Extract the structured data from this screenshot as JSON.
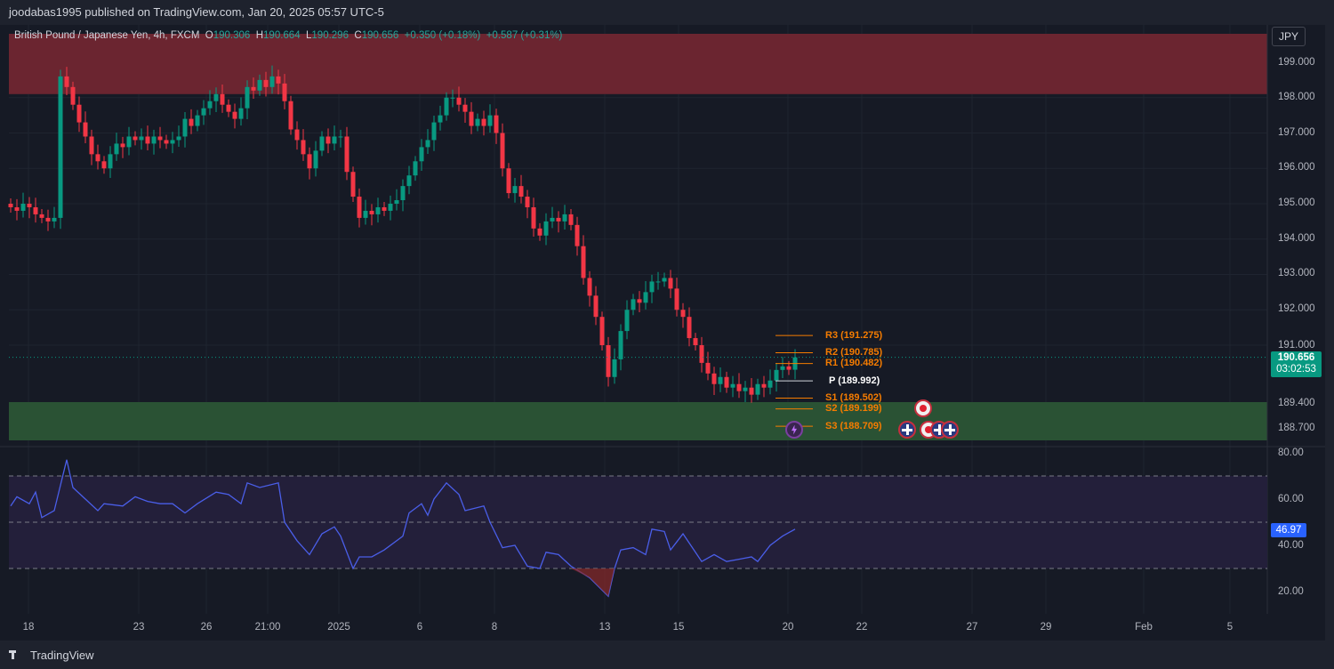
{
  "header": {
    "published": "joodabas1995 published on TradingView.com, Jan 20, 2025 05:57 UTC-5"
  },
  "legend": {
    "symbol": "British Pound / Japanese Yen, 4h, FXCM",
    "o_label": "O",
    "o": "190.306",
    "h_label": "H",
    "h": "190.664",
    "l_label": "L",
    "l": "190.296",
    "c_label": "C",
    "c": "190.656",
    "change": "+0.350 (+0.18%)",
    "change2": "+0.587 (+0.31%)"
  },
  "currency": "JPY",
  "price_axis": [
    "199.000",
    "198.000",
    "197.000",
    "196.000",
    "195.000",
    "194.000",
    "193.000",
    "192.000",
    "191.000",
    "189.400",
    "188.700"
  ],
  "last_price": {
    "price": "190.656",
    "countdown": "03:02:53"
  },
  "rsi_axis": [
    "80.00",
    "60.00",
    "40.00",
    "20.00"
  ],
  "rsi_last": "46.97",
  "x_axis": [
    "18",
    "23",
    "26",
    "21:00",
    "2025",
    "6",
    "8",
    "13",
    "15",
    "20",
    "22",
    "27",
    "29",
    "Feb",
    "5"
  ],
  "pivots": [
    {
      "label": "R3 (191.275)",
      "price": 191.275,
      "color": "#f57c00"
    },
    {
      "label": "R2 (190.785)",
      "price": 190.785,
      "color": "#f57c00"
    },
    {
      "label": "R1 (190.482)",
      "price": 190.482,
      "color": "#f57c00"
    },
    {
      "label": "P (189.992)",
      "price": 189.992,
      "color": "#ffffff"
    },
    {
      "label": "S1 (189.502)",
      "price": 189.502,
      "color": "#f57c00"
    },
    {
      "label": "S2 (189.199)",
      "price": 189.199,
      "color": "#f57c00"
    },
    {
      "label": "S3 (188.709)",
      "price": 188.709,
      "color": "#f57c00"
    }
  ],
  "zones": {
    "resistance": [
      198.1,
      199.8
    ],
    "support": [
      188.4,
      189.5
    ]
  },
  "colors": {
    "up": "#089981",
    "down": "#f23645",
    "rsi": "#4a5ee8"
  },
  "footer": {
    "brand": "TradingView"
  },
  "chart_data": {
    "type": "candlestick",
    "closes": [
      194.9,
      194.8,
      195.0,
      194.9,
      194.7,
      194.6,
      194.5,
      194.6,
      198.6,
      198.3,
      197.8,
      197.3,
      196.9,
      196.4,
      196.2,
      196.0,
      196.4,
      196.7,
      196.6,
      196.9,
      196.8,
      196.9,
      196.7,
      196.9,
      196.8,
      196.7,
      196.8,
      196.9,
      197.4,
      197.2,
      197.5,
      197.7,
      197.9,
      198.1,
      197.8,
      197.6,
      197.4,
      197.7,
      198.3,
      198.2,
      198.5,
      198.3,
      198.6,
      198.4,
      197.9,
      197.1,
      196.8,
      196.4,
      196.0,
      196.5,
      196.9,
      196.7,
      196.9,
      196.9,
      195.9,
      195.2,
      194.6,
      194.8,
      194.7,
      194.9,
      194.8,
      195.0,
      195.1,
      195.5,
      195.8,
      196.2,
      196.6,
      196.8,
      197.3,
      197.5,
      198.0,
      198.0,
      197.8,
      197.6,
      197.2,
      197.4,
      197.2,
      197.5,
      197.0,
      196.0,
      195.3,
      195.5,
      195.2,
      194.9,
      194.3,
      194.1,
      194.5,
      194.6,
      194.5,
      194.7,
      194.4,
      193.8,
      192.9,
      192.4,
      191.8,
      191.0,
      190.1,
      190.6,
      191.4,
      192.0,
      192.3,
      192.2,
      192.5,
      192.8,
      192.8,
      192.9,
      192.6,
      192.0,
      191.8,
      191.2,
      191.0,
      190.5,
      190.2,
      189.9,
      190.1,
      189.8,
      189.9,
      189.7,
      189.8,
      189.6,
      189.9,
      189.8,
      190.0,
      190.3,
      190.4,
      190.306,
      190.656
    ],
    "rsi": [
      [
        0,
        57
      ],
      [
        1,
        61
      ],
      [
        3,
        58
      ],
      [
        4,
        63
      ],
      [
        5,
        52
      ],
      [
        7,
        55
      ],
      [
        9,
        77
      ],
      [
        10,
        65
      ],
      [
        12,
        60
      ],
      [
        14,
        55
      ],
      [
        15,
        58
      ],
      [
        18,
        57
      ],
      [
        20,
        61
      ],
      [
        22,
        59
      ],
      [
        24,
        58
      ],
      [
        26,
        58
      ],
      [
        28,
        54
      ],
      [
        30,
        58
      ],
      [
        33,
        63
      ],
      [
        35,
        62
      ],
      [
        37,
        58
      ],
      [
        38,
        67
      ],
      [
        40,
        65
      ],
      [
        43,
        67
      ],
      [
        44,
        50
      ],
      [
        46,
        42
      ],
      [
        48,
        36
      ],
      [
        50,
        45
      ],
      [
        52,
        48
      ],
      [
        53,
        44
      ],
      [
        55,
        30
      ],
      [
        56,
        35
      ],
      [
        58,
        35
      ],
      [
        60,
        38
      ],
      [
        63,
        44
      ],
      [
        64,
        54
      ],
      [
        66,
        58
      ],
      [
        67,
        53
      ],
      [
        68,
        60
      ],
      [
        70,
        67
      ],
      [
        72,
        62
      ],
      [
        73,
        55
      ],
      [
        76,
        57
      ],
      [
        77,
        50
      ],
      [
        79,
        39
      ],
      [
        81,
        40
      ],
      [
        83,
        31
      ],
      [
        85,
        30
      ],
      [
        86,
        37
      ],
      [
        88,
        36
      ],
      [
        90,
        31
      ],
      [
        93,
        26
      ],
      [
        96,
        18
      ],
      [
        97,
        30
      ],
      [
        98,
        38
      ],
      [
        100,
        39
      ],
      [
        102,
        36
      ],
      [
        103,
        47
      ],
      [
        105,
        46
      ],
      [
        106,
        38
      ],
      [
        108,
        45
      ],
      [
        110,
        37
      ],
      [
        111,
        33
      ],
      [
        113,
        36
      ],
      [
        115,
        33
      ],
      [
        117,
        34
      ],
      [
        119,
        35
      ],
      [
        120,
        33
      ],
      [
        122,
        40
      ],
      [
        124,
        44
      ],
      [
        126,
        47
      ]
    ],
    "rsi_levels": [
      70,
      50,
      30
    ],
    "price_range": [
      187.6,
      200.5
    ]
  }
}
